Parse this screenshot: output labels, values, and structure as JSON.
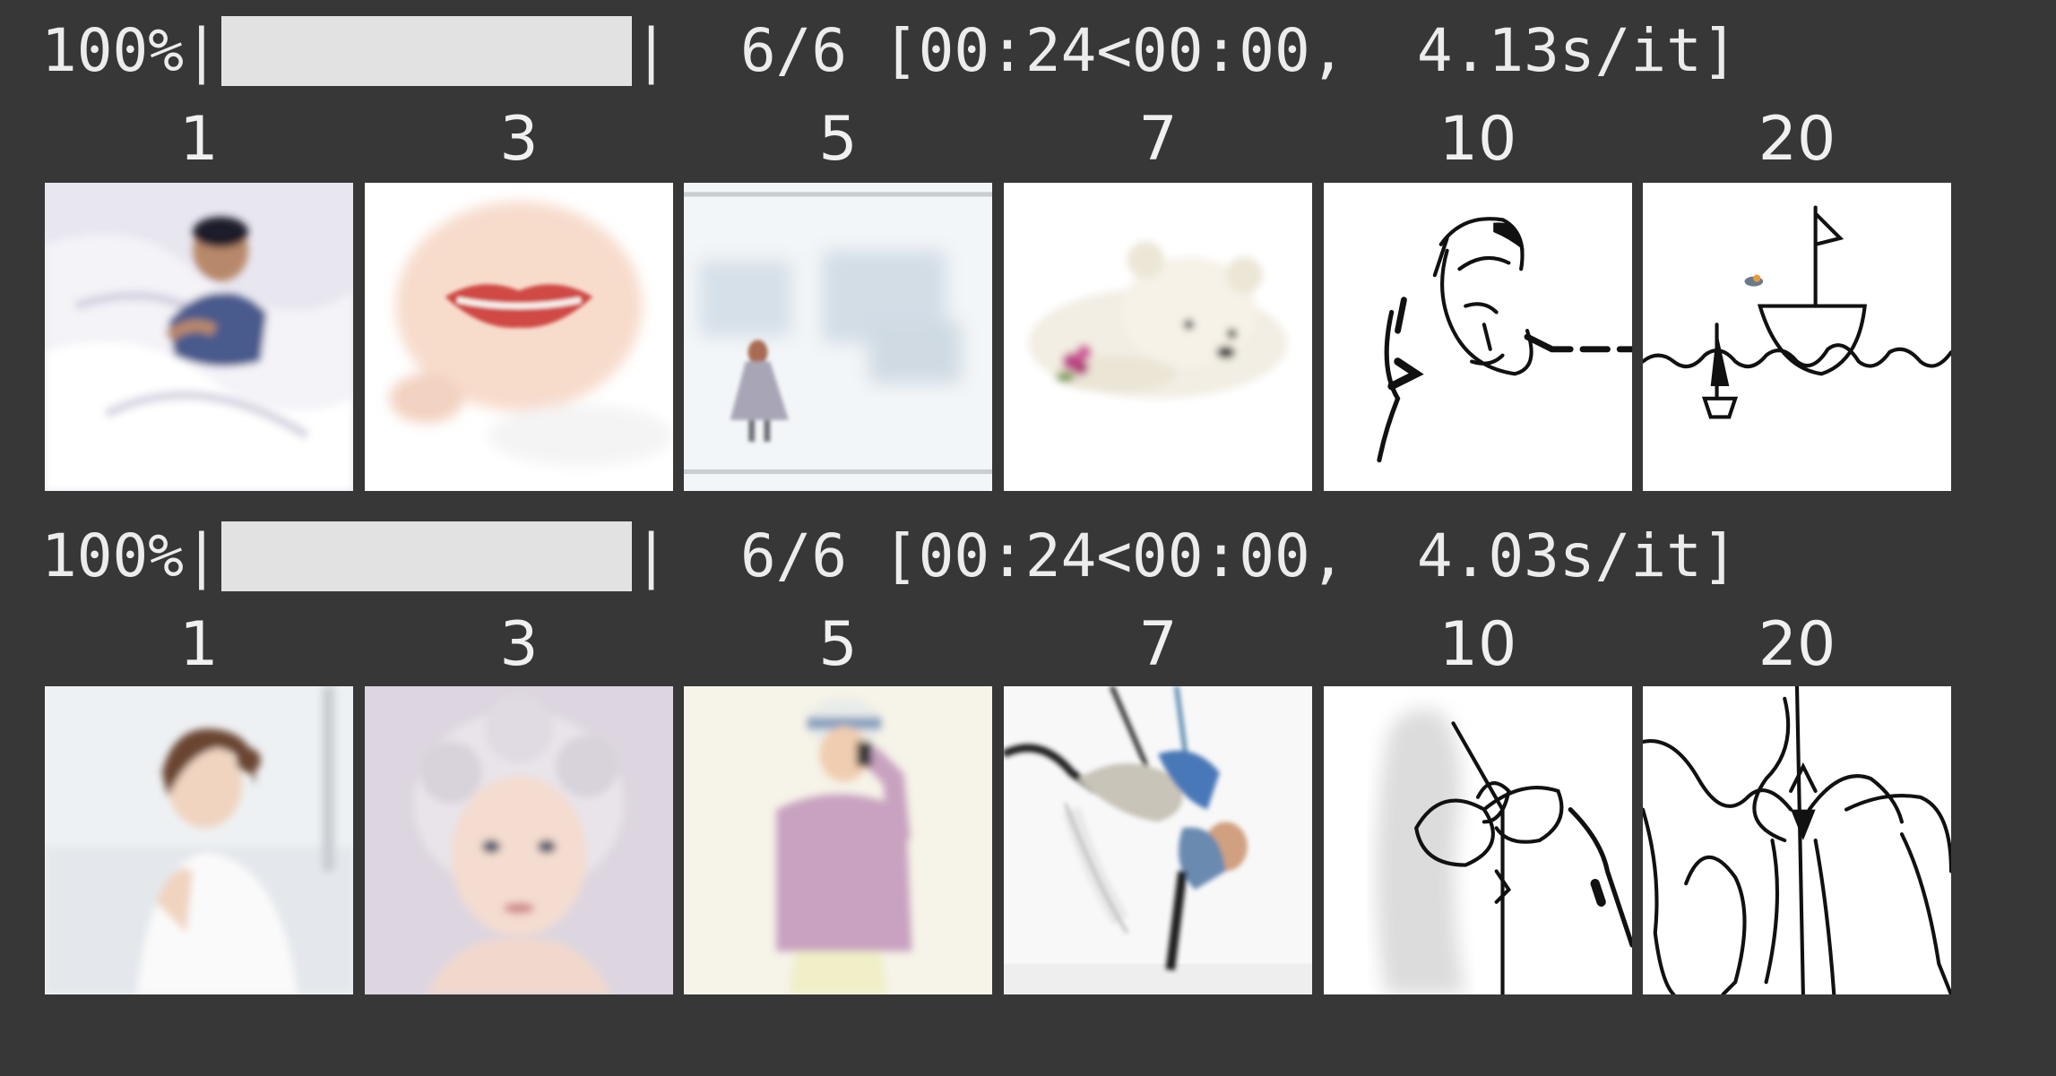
{
  "runs": [
    {
      "progress": {
        "percent_text": "100%",
        "left_pipe": "|",
        "right_pipe": "|",
        "fraction": 1.0,
        "count": "6/6",
        "timing": "[00:24<00:00,  4.13s/it]"
      },
      "steps": [
        "1",
        "3",
        "5",
        "7",
        "10",
        "20"
      ],
      "images": [
        {
          "subject": "man-in-bed"
        },
        {
          "subject": "lips-closeup"
        },
        {
          "subject": "girl-in-snow"
        },
        {
          "subject": "polar-bear-cub"
        },
        {
          "subject": "line-sketch-face"
        },
        {
          "subject": "line-sketch-boats"
        }
      ]
    },
    {
      "progress": {
        "percent_text": "100%",
        "left_pipe": "|",
        "right_pipe": "|",
        "fraction": 1.0,
        "count": "6/6",
        "timing": "[00:24<00:00,  4.03s/it]"
      },
      "steps": [
        "1",
        "3",
        "5",
        "7",
        "10",
        "20"
      ],
      "images": [
        {
          "subject": "woman-portrait"
        },
        {
          "subject": "child-portrait"
        },
        {
          "subject": "girl-with-phone"
        },
        {
          "subject": "acrobat-pose"
        },
        {
          "subject": "line-sketch-figure"
        },
        {
          "subject": "line-sketch-abstract"
        }
      ]
    }
  ],
  "colors": {
    "background": "#373737",
    "text": "#ececec",
    "bar_fill": "#e2e2e2"
  }
}
